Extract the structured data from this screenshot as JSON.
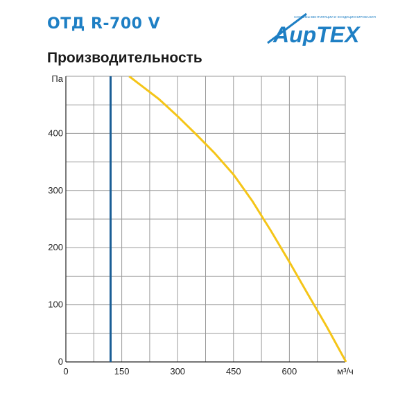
{
  "header": {
    "model": "ОТД R-700 V",
    "chart_title": "Производительность"
  },
  "brand": {
    "logo_text": "АирТЕХ",
    "tagline": "СИСТЕМЫ ВЕНТИЛЯЦИИ И КОНДИЦИОНИРОВАНИЯ",
    "color_blue": "#1e7fc4"
  },
  "chart_data": {
    "type": "line",
    "title": "Производительность",
    "xlabel": "м³/ч",
    "ylabel": "Па",
    "xlim": [
      0,
      750
    ],
    "ylim": [
      0,
      500
    ],
    "x_ticks": [
      0,
      150,
      300,
      450,
      600
    ],
    "y_ticks": [
      0,
      100,
      200,
      300,
      400
    ],
    "grid": true,
    "series": [
      {
        "color": "#f5c518",
        "points": [
          [
            170,
            500
          ],
          [
            200,
            485
          ],
          [
            250,
            460
          ],
          [
            300,
            430
          ],
          [
            350,
            398
          ],
          [
            400,
            365
          ],
          [
            450,
            328
          ],
          [
            500,
            282
          ],
          [
            550,
            230
          ],
          [
            600,
            175
          ],
          [
            650,
            118
          ],
          [
            700,
            62
          ],
          [
            752,
            0
          ]
        ]
      },
      {
        "color": "#1a5e96",
        "points": [
          [
            120,
            0
          ],
          [
            120,
            500
          ]
        ]
      }
    ]
  }
}
